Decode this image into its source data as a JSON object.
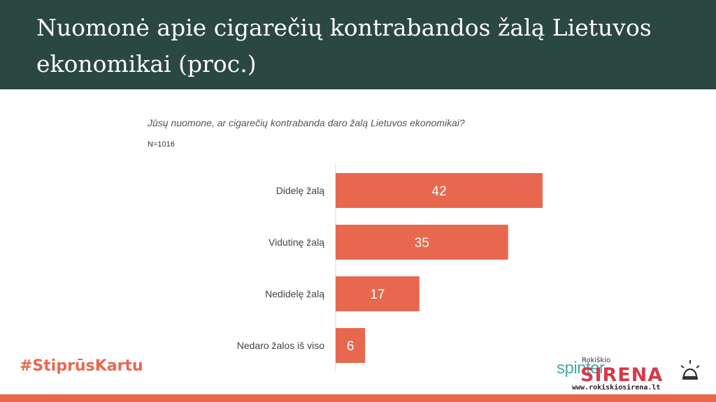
{
  "header": {
    "title": "Nuomonė apie cigarečių kontrabandos žalą Lietuvos ekonomikai (proc.)"
  },
  "question": "Jūsų nuomone, ar cigarečių kontrabanda daro žalą Lietuvos ekonomikai?",
  "sample_size": "N=1016",
  "footer": {
    "hashtag": "#StiprūsKartu",
    "logo_spinter": "spinter",
    "logo_brand": "SIRENA",
    "logo_town": "Rokiškio",
    "logo_url": "www.rokiskiosirena.lt",
    "logo_icon": "siren-icon"
  },
  "colors": {
    "header_bg": "#2b4741",
    "bar": "#e8684f",
    "accent": "#e8684f"
  },
  "chart_data": {
    "type": "bar",
    "orientation": "horizontal",
    "title": "Nuomonė apie cigarečių kontrabandos žalą Lietuvos ekonomikai (proc.)",
    "categories": [
      "Didelę žalą",
      "Vidutinę žalą",
      "Nedidelę žalą",
      "Nedaro žalos iš viso"
    ],
    "values": [
      42,
      35,
      17,
      6
    ],
    "xlim": [
      0,
      42
    ],
    "grid": false,
    "data_labels": true
  }
}
